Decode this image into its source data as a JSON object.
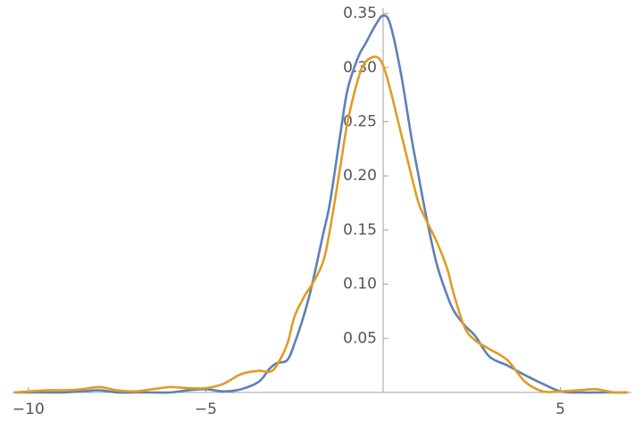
{
  "chart_data": {
    "type": "line",
    "x": [
      -10.4,
      -9.5,
      -9,
      -8.5,
      -8,
      -7.5,
      -7,
      -6.5,
      -6,
      -5.5,
      -5,
      -4.5,
      -4,
      -3.5,
      -3.2,
      -3,
      -2.7,
      -2.5,
      -2.2,
      -2,
      -1.7,
      -1.5,
      -1.2,
      -1,
      -0.7,
      -0.5,
      -0.2,
      0,
      0.2,
      0.5,
      0.8,
      1,
      1.2,
      1.5,
      1.8,
      2,
      2.3,
      2.6,
      3,
      3.5,
      4,
      4.5,
      5,
      5.5,
      6,
      6.5,
      6.9
    ],
    "series": [
      {
        "color": "#5e81b5",
        "values": [
          0,
          0,
          0,
          0.001,
          0.002,
          0,
          0,
          0,
          0,
          0.002,
          0.003,
          0.001,
          0.003,
          0.01,
          0.022,
          0.027,
          0.03,
          0.045,
          0.075,
          0.1,
          0.145,
          0.175,
          0.24,
          0.28,
          0.31,
          0.322,
          0.34,
          0.348,
          0.34,
          0.295,
          0.235,
          0.2,
          0.165,
          0.12,
          0.09,
          0.075,
          0.062,
          0.052,
          0.033,
          0.025,
          0.016,
          0.008,
          0.001,
          0,
          0,
          0,
          0
        ]
      },
      {
        "color": "#e19c24",
        "values": [
          0,
          0.002,
          0.002,
          0.003,
          0.005,
          0.002,
          0.001,
          0.003,
          0.005,
          0.004,
          0.004,
          0.008,
          0.017,
          0.02,
          0.019,
          0.025,
          0.045,
          0.07,
          0.09,
          0.1,
          0.12,
          0.15,
          0.21,
          0.25,
          0.29,
          0.305,
          0.31,
          0.302,
          0.28,
          0.24,
          0.2,
          0.175,
          0.16,
          0.14,
          0.115,
          0.09,
          0.06,
          0.048,
          0.04,
          0.03,
          0.01,
          0.001,
          0.001,
          0.002,
          0.003,
          0,
          0
        ]
      }
    ],
    "xlim": [
      -10.45,
      7
    ],
    "ylim": [
      0,
      0.355
    ],
    "xticks": [
      {
        "value": -10,
        "label": "−10"
      },
      {
        "value": -5,
        "label": "−5"
      },
      5
    ],
    "yticks": [
      0.05,
      {
        "value": 0.1,
        "label": "0.10"
      },
      0.15,
      {
        "value": 0.2,
        "label": "0.20"
      },
      0.25,
      {
        "value": 0.3,
        "label": "0.30"
      },
      0.35
    ]
  }
}
